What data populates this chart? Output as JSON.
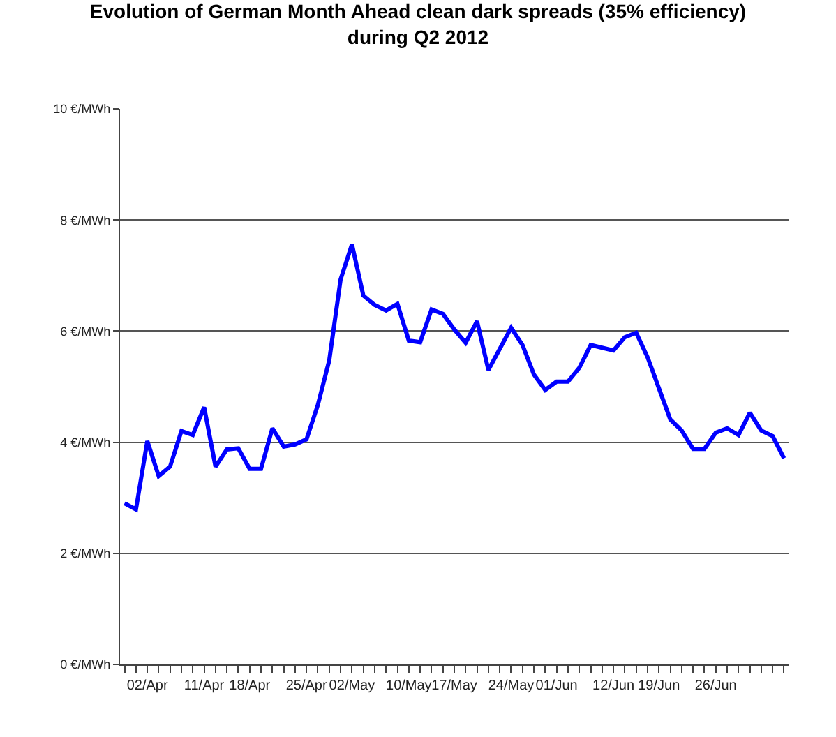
{
  "chart_data": {
    "type": "line",
    "title": "Evolution of German Month Ahead clean dark spreads (35% efficiency)\nduring Q2 2012",
    "categories": [
      null,
      null,
      "02/Apr",
      null,
      null,
      null,
      null,
      "11/Apr",
      null,
      null,
      null,
      "18/Apr",
      null,
      null,
      null,
      null,
      "25/Apr",
      null,
      null,
      null,
      "02/May",
      null,
      null,
      null,
      null,
      "10/May",
      null,
      null,
      null,
      "17/May",
      null,
      null,
      null,
      null,
      "24/May",
      null,
      null,
      null,
      "01/Jun",
      null,
      null,
      null,
      null,
      "12/Jun",
      null,
      null,
      null,
      "19/Jun",
      null,
      null,
      null,
      null,
      "26/Jun",
      null,
      null,
      null,
      null,
      null,
      null
    ],
    "series": [
      {
        "color": "#0000ff",
        "values": [
          2.9,
          2.79,
          4.02,
          3.39,
          3.56,
          4.2,
          4.13,
          4.63,
          3.56,
          3.87,
          3.89,
          3.52,
          3.52,
          4.25,
          3.92,
          3.96,
          4.05,
          4.67,
          5.47,
          6.93,
          7.56,
          6.64,
          6.47,
          6.37,
          6.49,
          5.83,
          5.8,
          6.39,
          6.31,
          6.03,
          5.79,
          6.18,
          5.3,
          5.68,
          6.06,
          5.75,
          5.22,
          4.94,
          5.09,
          5.09,
          5.34,
          5.75,
          5.7,
          5.65,
          5.89,
          5.97,
          5.53,
          4.97,
          4.41,
          4.21,
          3.88,
          3.88,
          4.17,
          4.25,
          4.13,
          4.53,
          4.21,
          4.11,
          3.71
        ]
      }
    ],
    "ylim": [
      0,
      10
    ],
    "yticks": [
      {
        "value": 0,
        "label": "0 €/MWh"
      },
      {
        "value": 2,
        "label": "2 €/MWh"
      },
      {
        "value": 4,
        "label": "4 €/MWh"
      },
      {
        "value": 6,
        "label": "6 €/MWh"
      },
      {
        "value": 8,
        "label": "8 €/MWh"
      },
      {
        "value": 10,
        "label": "10 €/MWh"
      }
    ],
    "grid": "y",
    "legend": false,
    "marker": "none",
    "line_style": "solid"
  }
}
